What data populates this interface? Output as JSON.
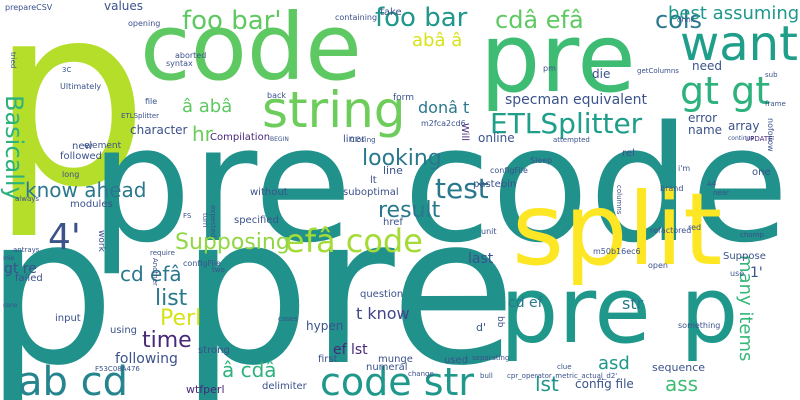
{
  "wordcloud": {
    "words": [
      {
        "text": "p",
        "color": "#b5de2b"
      },
      {
        "text": "code",
        "color": "#5ec962"
      },
      {
        "text": "pre",
        "color": "#3fbc73"
      },
      {
        "text": "pre code",
        "color": "#21918c"
      },
      {
        "text": "p pre",
        "color": "#21918c"
      },
      {
        "text": "split",
        "color": "#fde725"
      },
      {
        "text": "pre p",
        "color": "#1f988b"
      },
      {
        "text": "string",
        "color": "#6ccd5a"
      },
      {
        "text": "want",
        "color": "#1f9e89"
      },
      {
        "text": "gt gt",
        "color": "#2db27d"
      },
      {
        "text": "foo bar'",
        "color": "#5ec962"
      },
      {
        "text": "foo bar",
        "color": "#1f978b"
      },
      {
        "text": "cdâ efâ",
        "color": "#5ec962"
      },
      {
        "text": "cols",
        "color": "#2a788e"
      },
      {
        "text": "best assuming",
        "color": "#1f988b"
      },
      {
        "text": "abâ â",
        "color": "#d8e219"
      },
      {
        "text": "ETLSplitter",
        "color": "#1f9e89"
      },
      {
        "text": "code str",
        "color": "#1f988b"
      },
      {
        "text": "ab cd",
        "color": "#25848e"
      },
      {
        "text": "efâ code",
        "color": "#a5db36"
      },
      {
        "text": "Supposing",
        "color": "#90d743"
      },
      {
        "text": "4'",
        "color": "#3b528b"
      },
      {
        "text": "test",
        "color": "#2a788e"
      },
      {
        "text": "result",
        "color": "#2a788e"
      },
      {
        "text": "looking",
        "color": "#2a788e"
      },
      {
        "text": "know ahead",
        "color": "#2a788e"
      },
      {
        "text": "Basically",
        "color": "#2db27d"
      },
      {
        "text": "hr",
        "color": "#6ccd5a"
      },
      {
        "text": "â abâ",
        "color": "#5ec962"
      },
      {
        "text": "donâ t",
        "color": "#2a788e"
      },
      {
        "text": "specman equivalent",
        "color": "#3b528b"
      },
      {
        "text": "cd efâ",
        "color": "#2a788e"
      },
      {
        "text": "list",
        "color": "#2a788e"
      },
      {
        "text": "Perl",
        "color": "#d8e219"
      },
      {
        "text": "time",
        "color": "#482878"
      },
      {
        "text": "â cdâ",
        "color": "#2db27d"
      },
      {
        "text": "following",
        "color": "#3b528b"
      },
      {
        "text": "lst",
        "color": "#1f978b"
      },
      {
        "text": "ass",
        "color": "#3fbc73"
      },
      {
        "text": "many items",
        "color": "#35b779"
      },
      {
        "text": "asd",
        "color": "#1f978b"
      },
      {
        "text": "cd ef",
        "color": "#2a788e"
      },
      {
        "text": "str",
        "color": "#2a788e"
      },
      {
        "text": "t know",
        "color": "#414487"
      },
      {
        "text": "ef lst",
        "color": "#482878"
      },
      {
        "text": "config file",
        "color": "#3b528b"
      },
      {
        "text": "gt re",
        "color": "#3b528b"
      },
      {
        "text": "need",
        "color": "#3b528b"
      },
      {
        "text": "die",
        "color": "#3b528b"
      },
      {
        "text": "error",
        "color": "#3b528b"
      },
      {
        "text": "name",
        "color": "#3b528b"
      },
      {
        "text": "array",
        "color": "#3b528b"
      },
      {
        "text": "values",
        "color": "#3b528b"
      },
      {
        "text": "character",
        "color": "#3b528b"
      },
      {
        "text": "online",
        "color": "#3b528b"
      },
      {
        "text": "hypen",
        "color": "#3b528b"
      },
      {
        "text": "question",
        "color": "#3b528b"
      },
      {
        "text": "munge",
        "color": "#3b528b"
      },
      {
        "text": "numeral",
        "color": "#3b528b"
      },
      {
        "text": "delimiter",
        "color": "#3b528b"
      },
      {
        "text": "wtfperl",
        "color": "#482878"
      },
      {
        "text": "strong",
        "color": "#3b528b"
      },
      {
        "text": "using",
        "color": "#3b528b"
      },
      {
        "text": "input",
        "color": "#3b528b"
      },
      {
        "text": "failed",
        "color": "#3b528b"
      },
      {
        "text": "suboptimal",
        "color": "#3b528b"
      },
      {
        "text": "pastebin",
        "color": "#3b528b"
      },
      {
        "text": "configFile",
        "color": "#3b528b"
      },
      {
        "text": "line",
        "color": "#3b528b"
      },
      {
        "text": "liner",
        "color": "#3b528b"
      },
      {
        "text": "back",
        "color": "#3b528b"
      },
      {
        "text": "form",
        "color": "#3b528b"
      },
      {
        "text": "last",
        "color": "#3b528b"
      },
      {
        "text": "sequence",
        "color": "#3b528b"
      },
      {
        "text": "specified",
        "color": "#3b528b"
      },
      {
        "text": "without",
        "color": "#3b528b"
      },
      {
        "text": "modules",
        "color": "#3b528b"
      },
      {
        "text": "element",
        "color": "#3b528b"
      },
      {
        "text": "new",
        "color": "#3b528b"
      },
      {
        "text": "followed",
        "color": "#3b528b"
      },
      {
        "text": "long",
        "color": "#3b528b"
      },
      {
        "text": "Compilation",
        "color": "#482878"
      },
      {
        "text": "Ultimately",
        "color": "#3b528b"
      },
      {
        "text": "file",
        "color": "#3b528b"
      },
      {
        "text": "syntax",
        "color": "#3b528b"
      },
      {
        "text": "aborted",
        "color": "#3b528b"
      },
      {
        "text": "opening",
        "color": "#3b528b"
      },
      {
        "text": "take",
        "color": "#3b528b"
      },
      {
        "text": "containing",
        "color": "#3b528b"
      },
      {
        "text": "pm",
        "color": "#3b528b"
      },
      {
        "text": "drink",
        "color": "#3b528b"
      },
      {
        "text": "getColumns",
        "color": "#3b528b"
      },
      {
        "text": "UPDATE",
        "color": "#482878"
      },
      {
        "text": "prepareCSV",
        "color": "#3b528b"
      },
      {
        "text": "tried",
        "color": "#3b528b"
      },
      {
        "text": "3C",
        "color": "#3b528b"
      },
      {
        "text": "ETLSplitter",
        "color": "#3b528b"
      },
      {
        "text": "Will",
        "color": "#482878"
      },
      {
        "text": "Closing",
        "color": "#3b528b"
      },
      {
        "text": "attempted",
        "color": "#3b528b"
      },
      {
        "text": "BEGIN",
        "color": "#3b528b"
      },
      {
        "text": "m2fca2cd6",
        "color": "#3b528b"
      },
      {
        "text": "rel",
        "color": "#3b528b"
      },
      {
        "text": "Sleep",
        "color": "#3b528b"
      },
      {
        "text": "frame",
        "color": "#3b528b"
      },
      {
        "text": "continue",
        "color": "#3b528b"
      },
      {
        "text": "sub",
        "color": "#3b528b"
      },
      {
        "text": "nofollow",
        "color": "#3b528b"
      },
      {
        "text": "one",
        "color": "#3b528b"
      },
      {
        "text": "A4",
        "color": "#3b528b"
      },
      {
        "text": "near",
        "color": "#3b528b"
      },
      {
        "text": "brand",
        "color": "#3b528b"
      },
      {
        "text": "columns",
        "color": "#3b528b"
      },
      {
        "text": "href",
        "color": "#3b528b"
      },
      {
        "text": "unit",
        "color": "#3b528b"
      },
      {
        "text": "require",
        "color": "#3b528b"
      },
      {
        "text": "expected",
        "color": "#3b528b"
      },
      {
        "text": "refactored",
        "color": "#3b528b"
      },
      {
        "text": "red",
        "color": "#3b528b"
      },
      {
        "text": "m50b16ec6",
        "color": "#3b528b"
      },
      {
        "text": "open",
        "color": "#3b528b"
      },
      {
        "text": "Suppose",
        "color": "#3b528b"
      },
      {
        "text": "chomp",
        "color": "#3b528b"
      },
      {
        "text": "use",
        "color": "#3b528b"
      },
      {
        "text": "1'",
        "color": "#3b528b"
      },
      {
        "text": "FS",
        "color": "#3b528b"
      },
      {
        "text": "turn",
        "color": "#3b528b"
      },
      {
        "text": "work",
        "color": "#3b528b"
      },
      {
        "text": "Another",
        "color": "#3b528b"
      },
      {
        "text": "two",
        "color": "#3b528b"
      },
      {
        "text": "cases",
        "color": "#3b528b"
      },
      {
        "text": "d'",
        "color": "#3b528b"
      },
      {
        "text": "bb",
        "color": "#3b528b"
      },
      {
        "text": "something",
        "color": "#3b528b"
      },
      {
        "text": "first",
        "color": "#3b528b"
      },
      {
        "text": "used",
        "color": "#3b528b"
      },
      {
        "text": "F53C08A476",
        "color": "#3b528b"
      },
      {
        "text": "change",
        "color": "#3b528b"
      },
      {
        "text": "clue",
        "color": "#3b528b"
      },
      {
        "text": "separating",
        "color": "#3b528b"
      },
      {
        "text": "bull",
        "color": "#3b528b"
      },
      {
        "text": "cpr_operator_metric_actual_d2'",
        "color": "#3b528b"
      },
      {
        "text": "always",
        "color": "#3b528b"
      },
      {
        "text": "antrays",
        "color": "#3b528b"
      },
      {
        "text": "mle",
        "color": "#3b528b"
      },
      {
        "text": "cone",
        "color": "#3b528b"
      },
      {
        "text": "i'm",
        "color": "#3b528b"
      },
      {
        "text": "lt",
        "color": "#3b528b"
      },
      {
        "text": "configFile",
        "color": "#3b528b"
      }
    ]
  }
}
